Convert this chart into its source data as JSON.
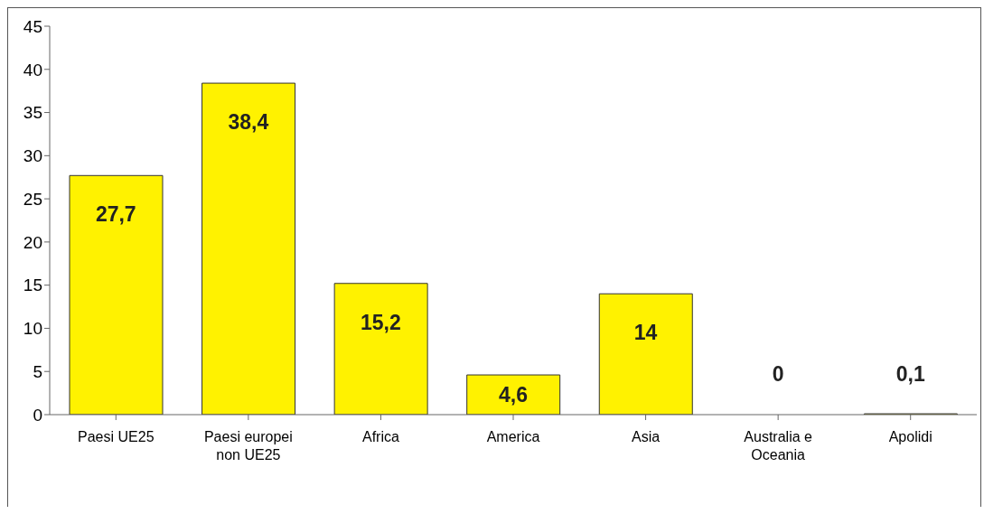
{
  "chart_data": {
    "type": "bar",
    "categories": [
      "Paesi UE25",
      "Paesi europei non UE25",
      "Africa",
      "America",
      "Asia",
      "Australia e Oceania",
      "Apolidi"
    ],
    "values": [
      27.7,
      38.4,
      15.2,
      4.6,
      14,
      0,
      0.1
    ],
    "value_labels": [
      "27,7",
      "38,4",
      "15,2",
      "4,6",
      "14",
      "0",
      "0,1"
    ],
    "color": "#fff200",
    "ylim": [
      0,
      45
    ],
    "yticks": [
      0,
      5,
      10,
      15,
      20,
      25,
      30,
      35,
      40,
      45
    ],
    "grid": false,
    "legend": false
  }
}
